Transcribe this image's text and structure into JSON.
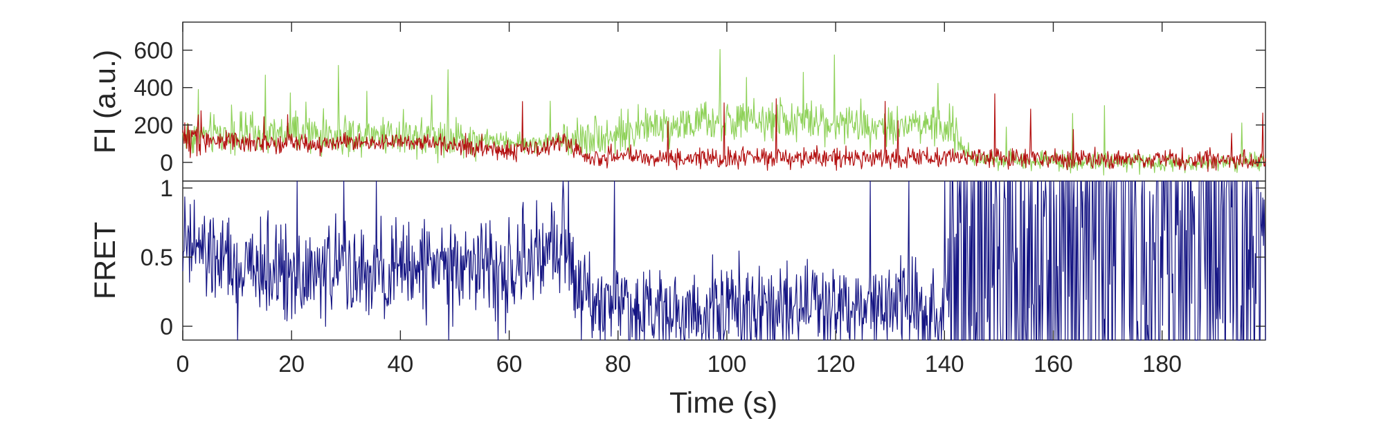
{
  "chart_data": [
    {
      "type": "line",
      "panel": "top",
      "ylabel": "FI (a.u.)",
      "xlabel": "",
      "xlim": [
        0,
        199
      ],
      "ylim": [
        -100,
        750
      ],
      "yticks": [
        0,
        200,
        400,
        600
      ],
      "grid": false,
      "series": [
        {
          "color": "#8ed158",
          "x": [
            0,
            5,
            10,
            15,
            20,
            25,
            30,
            35,
            40,
            45,
            50,
            55,
            60,
            65,
            70,
            75,
            80,
            85,
            90,
            95,
            100,
            105,
            110,
            115,
            120,
            125,
            130,
            135,
            140,
            141,
            145,
            150,
            155,
            160,
            165,
            170,
            175,
            180,
            185,
            190,
            195,
            199
          ],
          "values": [
            140,
            150,
            145,
            140,
            150,
            150,
            140,
            160,
            150,
            140,
            130,
            120,
            110,
            100,
            120,
            140,
            150,
            190,
            200,
            210,
            220,
            215,
            225,
            210,
            215,
            200,
            205,
            210,
            190,
            180,
            20,
            15,
            10,
            10,
            5,
            0,
            5,
            0,
            5,
            0,
            5,
            0
          ]
        },
        {
          "color": "#b30f0f",
          "x": [
            0,
            5,
            10,
            15,
            20,
            25,
            30,
            35,
            40,
            45,
            50,
            55,
            60,
            65,
            70,
            75,
            80,
            85,
            90,
            95,
            100,
            105,
            110,
            115,
            120,
            125,
            130,
            135,
            140,
            141,
            145,
            150,
            155,
            160,
            165,
            170,
            175,
            180,
            185,
            190,
            195,
            199
          ],
          "values": [
            150,
            120,
            110,
            100,
            110,
            100,
            110,
            100,
            110,
            100,
            90,
            80,
            60,
            70,
            110,
            20,
            40,
            20,
            20,
            30,
            20,
            30,
            20,
            30,
            20,
            30,
            20,
            20,
            20,
            30,
            20,
            20,
            20,
            20,
            20,
            10,
            20,
            10,
            20,
            10,
            20,
            10
          ]
        }
      ]
    },
    {
      "type": "line",
      "panel": "bottom",
      "ylabel": "FRET",
      "xlabel": "Time (s)",
      "xlim": [
        0,
        199
      ],
      "ylim": [
        -0.1,
        1.05
      ],
      "yticks": [
        0,
        0.5,
        1
      ],
      "xticks": [
        0,
        20,
        40,
        60,
        80,
        100,
        120,
        140,
        160,
        180
      ],
      "grid": false,
      "series": [
        {
          "color": "#141483",
          "x": [
            0,
            5,
            10,
            15,
            20,
            25,
            30,
            35,
            40,
            45,
            50,
            55,
            60,
            65,
            70,
            75,
            80,
            85,
            90,
            95,
            100,
            105,
            110,
            115,
            120,
            125,
            130,
            135,
            140,
            141,
            145,
            150,
            155,
            160,
            165,
            170,
            175,
            180,
            185,
            190,
            195,
            199
          ],
          "values": [
            0.6,
            0.5,
            0.4,
            0.4,
            0.4,
            0.4,
            0.4,
            0.35,
            0.4,
            0.45,
            0.5,
            0.45,
            0.35,
            0.5,
            0.6,
            0.15,
            0.2,
            0.1,
            0.15,
            0.1,
            0.15,
            0.15,
            0.15,
            0.15,
            0.15,
            0.1,
            0.15,
            0.15,
            0.1,
            0.55,
            0.5,
            0.5,
            0.5,
            0.5,
            0.5,
            0.5,
            0.5,
            0.5,
            0.5,
            0.5,
            0.5,
            0.5
          ]
        }
      ]
    }
  ]
}
